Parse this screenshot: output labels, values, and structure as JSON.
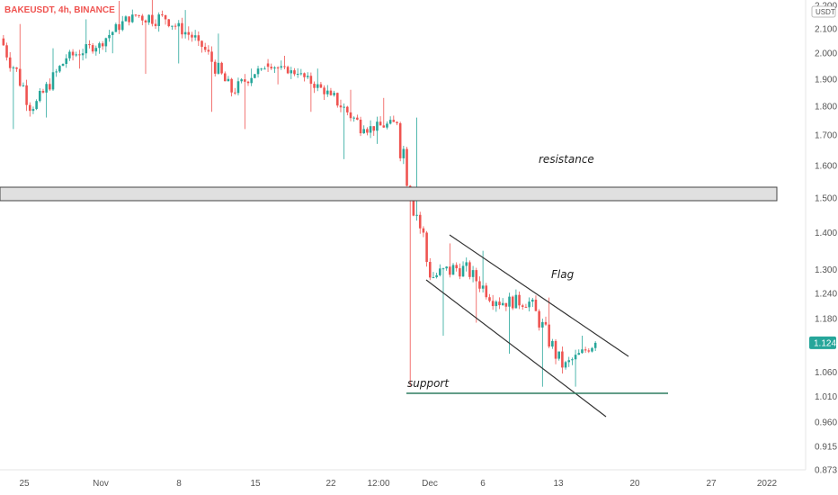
{
  "header": {
    "title": "BAKEUSDT, 4h, BINANCE"
  },
  "price_axis": {
    "unit": "USDT",
    "last_price": "1.124",
    "last_price_color": "#26a69a"
  },
  "chart_data": {
    "type": "candlestick",
    "title": "BAKEUSDT, 4h, BINANCE",
    "xlabel": "",
    "ylabel": "",
    "y_scale": "log",
    "ylim": [
      0.873,
      2.2
    ],
    "y_ticks": [
      "2.200",
      "2.100",
      "2.000",
      "1.900",
      "1.800",
      "1.700",
      "1.600",
      "1.500",
      "1.400",
      "1.300",
      "1.240",
      "1.180",
      "1.124",
      "1.060",
      "1.010",
      "0.960",
      "0.915",
      "0.873"
    ],
    "x_ticks": [
      "25",
      "Nov",
      "8",
      "15",
      "22",
      "12:00",
      "Dec",
      "6",
      "13",
      "20",
      "27",
      "2022"
    ],
    "up_color": "#26a69a",
    "down_color": "#ef5350",
    "series": [
      {
        "period": "25 Oct",
        "open": 2.06,
        "high": 2.12,
        "low": 1.72,
        "close": 1.79
      },
      {
        "period": "late Oct",
        "open": 1.79,
        "high": 2.02,
        "low": 1.76,
        "close": 1.98
      },
      {
        "period": "Nov",
        "open": 1.98,
        "high": 2.14,
        "low": 1.94,
        "close": 2.04
      },
      {
        "period": "early Nov",
        "open": 2.04,
        "high": 2.22,
        "low": 2.0,
        "close": 2.16
      },
      {
        "period": "8 Nov",
        "open": 2.16,
        "high": 2.24,
        "low": 1.92,
        "close": 2.14
      },
      {
        "period": "mid Nov",
        "open": 2.14,
        "high": 2.18,
        "low": 1.96,
        "close": 2.05
      },
      {
        "period": "15 Nov",
        "open": 2.05,
        "high": 2.08,
        "low": 1.78,
        "close": 1.85
      },
      {
        "period": "18 Nov",
        "open": 1.85,
        "high": 1.94,
        "low": 1.72,
        "close": 1.96
      },
      {
        "period": "22 Nov",
        "open": 1.96,
        "high": 1.99,
        "low": 1.88,
        "close": 1.92
      },
      {
        "period": "25 Nov",
        "open": 1.92,
        "high": 1.94,
        "low": 1.78,
        "close": 1.84
      },
      {
        "period": "28 Nov",
        "open": 1.84,
        "high": 1.86,
        "low": 1.62,
        "close": 1.72
      },
      {
        "period": "Dec",
        "open": 1.72,
        "high": 1.83,
        "low": 1.67,
        "close": 1.74
      },
      {
        "period": "4 Dec",
        "open": 1.74,
        "high": 1.76,
        "low": 1.03,
        "close": 1.28
      },
      {
        "period": "6 Dec",
        "open": 1.28,
        "high": 1.37,
        "low": 1.14,
        "close": 1.31
      },
      {
        "period": "8 Dec",
        "open": 1.31,
        "high": 1.35,
        "low": 1.17,
        "close": 1.22
      },
      {
        "period": "11 Dec",
        "open": 1.22,
        "high": 1.25,
        "low": 1.1,
        "close": 1.22
      },
      {
        "period": "13 Dec",
        "open": 1.22,
        "high": 1.23,
        "low": 1.03,
        "close": 1.07
      },
      {
        "period": "15 Dec",
        "open": 1.07,
        "high": 1.14,
        "low": 1.03,
        "close": 1.124
      }
    ],
    "annotations": [
      {
        "text": "resistance",
        "zone": [
          1.55,
          1.58
        ]
      },
      {
        "text": "Flag"
      },
      {
        "text": "support",
        "level": 1.03
      }
    ],
    "grid": false
  }
}
